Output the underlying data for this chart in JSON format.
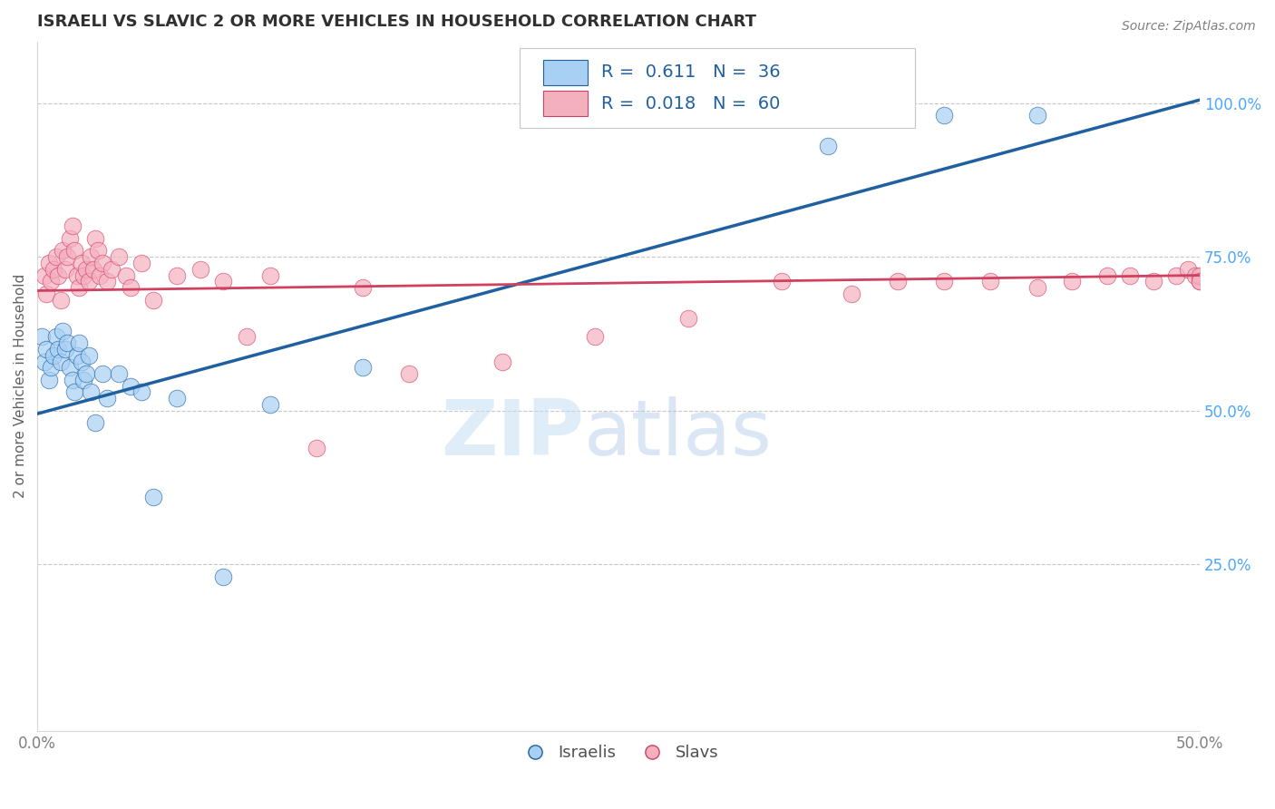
{
  "title": "ISRAELI VS SLAVIC 2 OR MORE VEHICLES IN HOUSEHOLD CORRELATION CHART",
  "source": "Source: ZipAtlas.com",
  "ylabel": "2 or more Vehicles in Household",
  "xlim": [
    0.0,
    0.5
  ],
  "ylim": [
    -0.02,
    1.1
  ],
  "legend_israelis_R": "0.611",
  "legend_israelis_N": "36",
  "legend_slavs_R": "0.018",
  "legend_slavs_N": "60",
  "israeli_color": "#a8d0f5",
  "slav_color": "#f5b0c0",
  "trendline_israeli_color": "#2060a0",
  "trendline_slav_color": "#d04060",
  "background_color": "#ffffff",
  "watermark_zip": "ZIP",
  "watermark_atlas": "atlas",
  "grid_color": "#c8c8c8",
  "title_color": "#303030",
  "right_tick_color": "#4da6ff",
  "israeli_x": [
    0.002,
    0.003,
    0.004,
    0.005,
    0.006,
    0.007,
    0.008,
    0.009,
    0.01,
    0.011,
    0.012,
    0.013,
    0.014,
    0.015,
    0.016,
    0.017,
    0.018,
    0.019,
    0.02,
    0.021,
    0.022,
    0.023,
    0.025,
    0.028,
    0.03,
    0.035,
    0.04,
    0.045,
    0.05,
    0.06,
    0.08,
    0.1,
    0.14,
    0.34,
    0.39,
    0.43
  ],
  "israeli_y": [
    0.62,
    0.58,
    0.6,
    0.55,
    0.57,
    0.59,
    0.62,
    0.6,
    0.58,
    0.63,
    0.6,
    0.61,
    0.57,
    0.55,
    0.53,
    0.59,
    0.61,
    0.58,
    0.55,
    0.56,
    0.59,
    0.53,
    0.48,
    0.56,
    0.52,
    0.56,
    0.54,
    0.53,
    0.36,
    0.52,
    0.23,
    0.51,
    0.57,
    0.93,
    0.98,
    0.98
  ],
  "slav_x": [
    0.003,
    0.004,
    0.005,
    0.006,
    0.007,
    0.008,
    0.009,
    0.01,
    0.011,
    0.012,
    0.013,
    0.014,
    0.015,
    0.016,
    0.017,
    0.018,
    0.019,
    0.02,
    0.021,
    0.022,
    0.023,
    0.024,
    0.025,
    0.026,
    0.027,
    0.028,
    0.03,
    0.032,
    0.035,
    0.038,
    0.04,
    0.045,
    0.05,
    0.06,
    0.07,
    0.08,
    0.09,
    0.1,
    0.12,
    0.14,
    0.16,
    0.2,
    0.24,
    0.28,
    0.32,
    0.35,
    0.37,
    0.39,
    0.41,
    0.43,
    0.445,
    0.46,
    0.47,
    0.48,
    0.49,
    0.495,
    0.498,
    0.5,
    0.5,
    0.5
  ],
  "slav_y": [
    0.72,
    0.69,
    0.74,
    0.71,
    0.73,
    0.75,
    0.72,
    0.68,
    0.76,
    0.73,
    0.75,
    0.78,
    0.8,
    0.76,
    0.72,
    0.7,
    0.74,
    0.72,
    0.73,
    0.71,
    0.75,
    0.73,
    0.78,
    0.76,
    0.72,
    0.74,
    0.71,
    0.73,
    0.75,
    0.72,
    0.7,
    0.74,
    0.68,
    0.72,
    0.73,
    0.71,
    0.62,
    0.72,
    0.44,
    0.7,
    0.56,
    0.58,
    0.62,
    0.65,
    0.71,
    0.69,
    0.71,
    0.71,
    0.71,
    0.7,
    0.71,
    0.72,
    0.72,
    0.71,
    0.72,
    0.73,
    0.72,
    0.71,
    0.72,
    0.71
  ],
  "trendline_israeli_x0": 0.0,
  "trendline_israeli_y0": 0.495,
  "trendline_israeli_x1": 0.5,
  "trendline_israeli_y1": 1.005,
  "trendline_slav_x0": 0.0,
  "trendline_slav_y0": 0.695,
  "trendline_slav_x1": 0.5,
  "trendline_slav_y1": 0.72
}
